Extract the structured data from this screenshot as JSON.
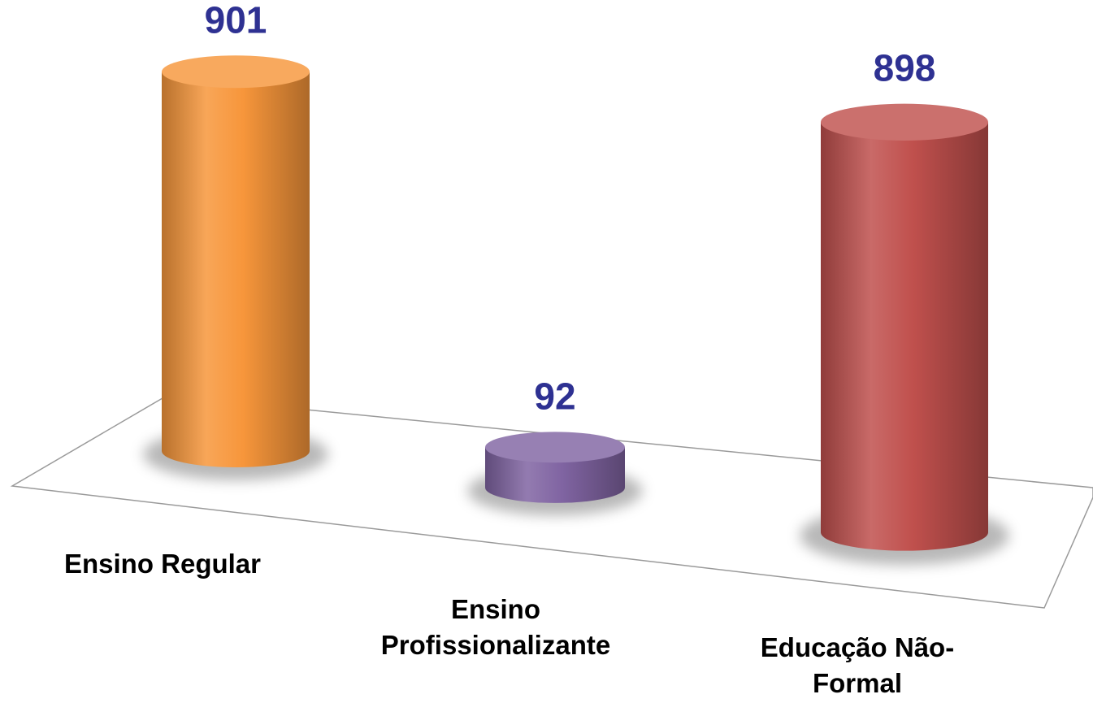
{
  "chart_data": {
    "type": "bar",
    "categories": [
      "Ensino Regular",
      "Ensino Profissionalizante",
      "Educação Não-Formal"
    ],
    "values": [
      901,
      92,
      898
    ],
    "colors": [
      "#f7963b",
      "#8064a2",
      "#c0504d"
    ],
    "value_label_color": "#2e3192"
  }
}
